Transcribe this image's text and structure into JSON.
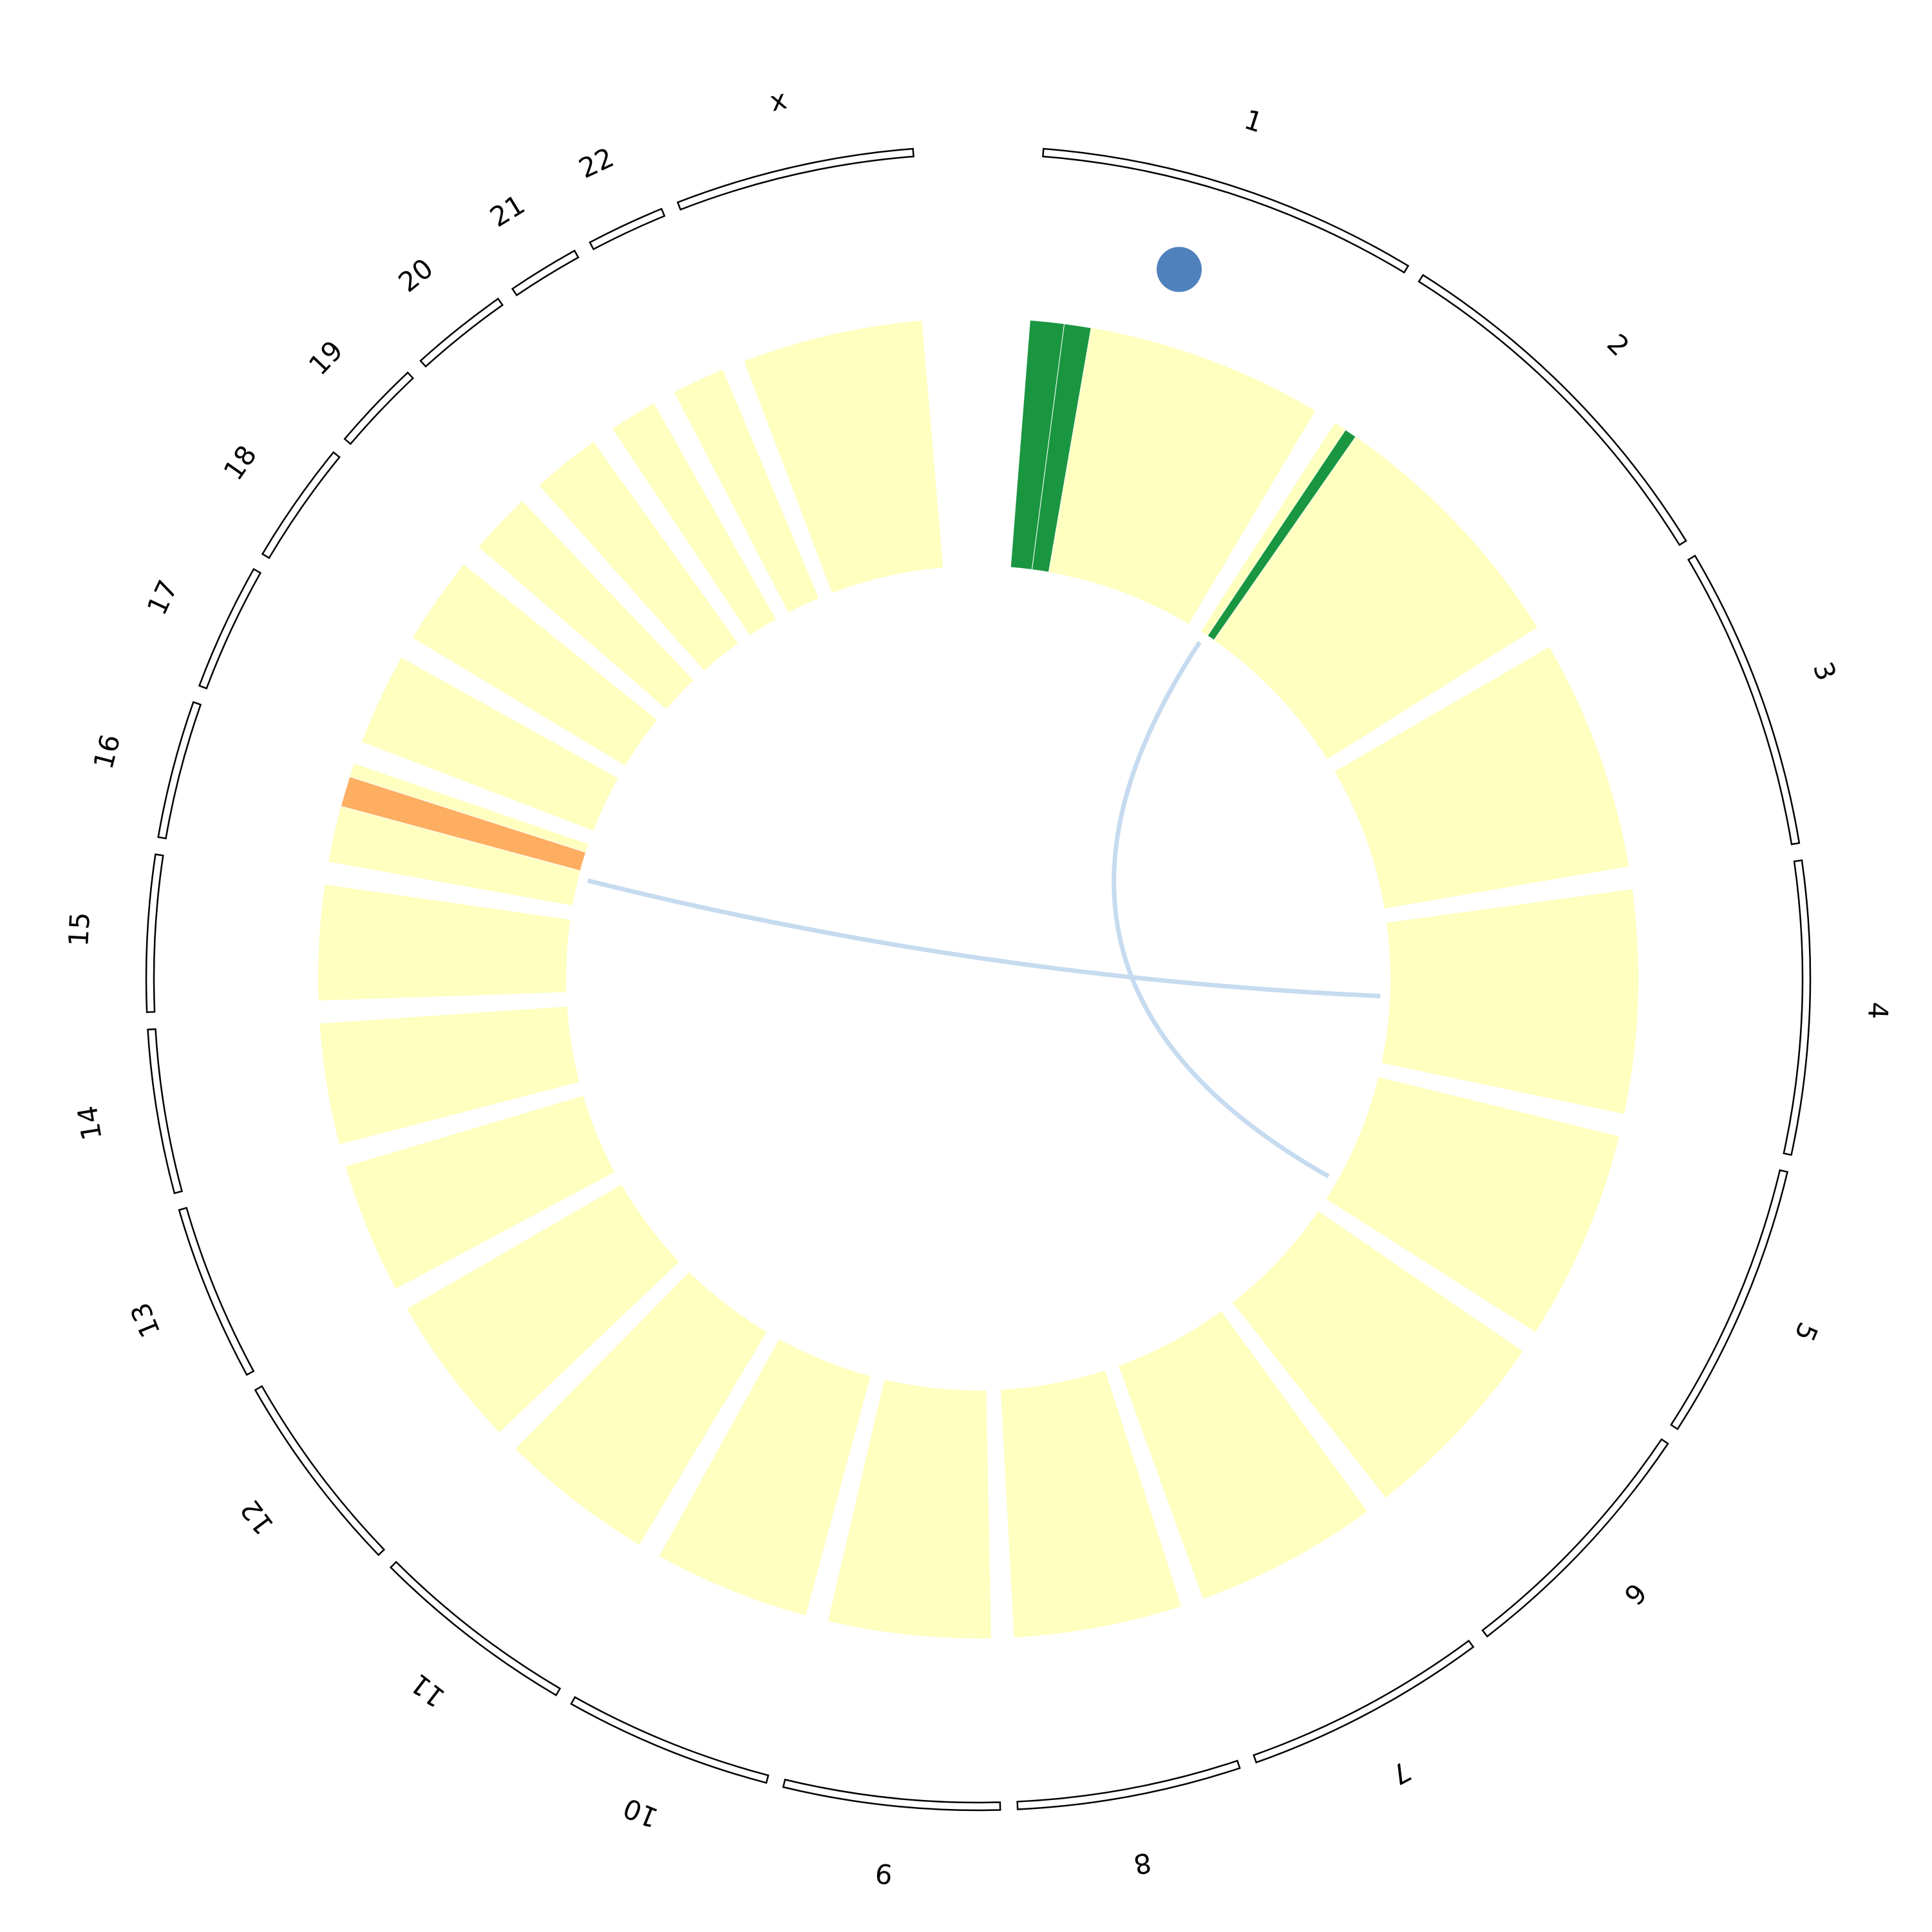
{
  "chart_data": {
    "type": "circos",
    "categories": [
      "1",
      "2",
      "3",
      "4",
      "5",
      "6",
      "7",
      "8",
      "9",
      "10",
      "11",
      "12",
      "13",
      "14",
      "15",
      "16",
      "17",
      "18",
      "19",
      "20",
      "21",
      "22",
      "x"
    ],
    "values": [
      249,
      243,
      198,
      191,
      181,
      171,
      159,
      146,
      141,
      136,
      135,
      133,
      115,
      107,
      102,
      90,
      83,
      80,
      59,
      64,
      47,
      51,
      156
    ],
    "color": "#ffffc0",
    "bands": [
      {
        "category": "1",
        "start": 0,
        "end": 28,
        "color": "#1a9641"
      },
      {
        "category": "1",
        "start": 28,
        "end": 50,
        "color": "#1a9641"
      },
      {
        "category": "2",
        "start": 14,
        "end": 24,
        "color": "#1a9641"
      },
      {
        "category": "16",
        "start": 50,
        "end": 75,
        "color": "#fdae61"
      }
    ],
    "points": [
      {
        "category": "1",
        "position": 106,
        "color": "#4f81bd"
      }
    ],
    "links": [
      {
        "from": {
          "category": "16",
          "position": 40
        },
        "to": {
          "category": "4",
          "position": 100
        },
        "color": "#c6dbef"
      },
      {
        "from": {
          "category": "2",
          "position": 10
        },
        "to": {
          "category": "5",
          "position": 150
        },
        "color": "#c6dbef"
      }
    ]
  }
}
